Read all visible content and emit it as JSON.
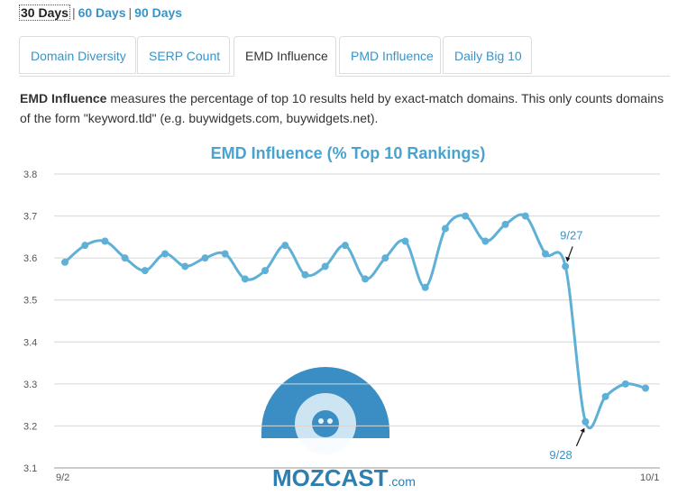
{
  "range": {
    "options": [
      "30 Days",
      "60 Days",
      "90 Days"
    ],
    "active": 0
  },
  "tabs": [
    {
      "label": "Domain Diversity"
    },
    {
      "label": "SERP Count"
    },
    {
      "label": "EMD Influence",
      "active": true
    },
    {
      "label": "PMD Influence"
    },
    {
      "label": "Daily Big 10"
    }
  ],
  "description": {
    "lead": "EMD Influence",
    "body": " measures the percentage of top 10 results held by exact-match domains. This only counts domains of the form \"keyword.tld\" (e.g. buywidgets.com, buywidgets.net)."
  },
  "chart_data": {
    "type": "line",
    "title": "EMD Influence (% Top 10 Rankings)",
    "xlabel": "",
    "ylabel": "",
    "ylim": [
      3.1,
      3.8
    ],
    "yticks": [
      "3.8",
      "3.7",
      "3.6",
      "3.5",
      "3.4",
      "3.3",
      "3.2",
      "3.1"
    ],
    "x_tick_labels": [
      "9/2",
      "10/1"
    ],
    "grid": true,
    "line_color": "#5fb0d6",
    "values": [
      3.59,
      3.63,
      3.64,
      3.6,
      3.57,
      3.61,
      3.58,
      3.6,
      3.61,
      3.55,
      3.57,
      3.63,
      3.56,
      3.58,
      3.63,
      3.55,
      3.6,
      3.64,
      3.53,
      3.67,
      3.7,
      3.64,
      3.68,
      3.7,
      3.61,
      3.58,
      3.21,
      3.27,
      3.3,
      3.29
    ],
    "annotations": [
      {
        "label": "9/27",
        "index": 25
      },
      {
        "label": "9/28",
        "index": 26
      }
    ]
  },
  "logo": {
    "brand": "MOZCAST",
    "suffix": ".com",
    "color": "#2e7fb0"
  }
}
